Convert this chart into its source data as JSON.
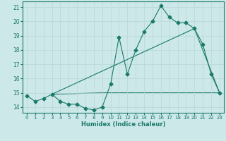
{
  "line1_x": [
    0,
    1,
    2,
    3,
    4,
    5,
    6,
    7,
    8,
    9,
    10,
    11,
    12,
    13,
    14,
    15,
    16,
    17,
    18,
    19,
    20,
    21,
    22,
    23
  ],
  "line1_y": [
    14.8,
    14.4,
    14.6,
    14.9,
    14.4,
    14.2,
    14.2,
    13.9,
    13.8,
    14.0,
    15.6,
    18.9,
    16.3,
    18.0,
    19.3,
    20.0,
    21.1,
    20.3,
    19.9,
    19.9,
    19.5,
    18.4,
    16.3,
    15.0
  ],
  "line2_x": [
    3,
    20,
    23
  ],
  "line2_y": [
    14.9,
    19.5,
    15.0
  ],
  "line3_x": [
    3,
    9,
    23
  ],
  "line3_y": [
    14.9,
    15.0,
    15.0
  ],
  "color": "#1a7a6a",
  "bg_color": "#cce8e8",
  "grid_color": "#b8d8d8",
  "xlabel": "Humidex (Indice chaleur)",
  "xlim": [
    -0.5,
    23.5
  ],
  "ylim": [
    13.6,
    21.4
  ],
  "yticks": [
    14,
    15,
    16,
    17,
    18,
    19,
    20,
    21
  ],
  "xticks": [
    0,
    1,
    2,
    3,
    4,
    5,
    6,
    7,
    8,
    9,
    10,
    11,
    12,
    13,
    14,
    15,
    16,
    17,
    18,
    19,
    20,
    21,
    22,
    23
  ],
  "xtick_labels": [
    "0",
    "1",
    "2",
    "3",
    "4",
    "5",
    "6",
    "7",
    "8",
    "9",
    "10",
    "11",
    "12",
    "13",
    "14",
    "15",
    "16",
    "17",
    "18",
    "19",
    "20",
    "21",
    "22",
    "23"
  ],
  "marker": "D",
  "marker_size": 2.5,
  "line_width": 0.8
}
